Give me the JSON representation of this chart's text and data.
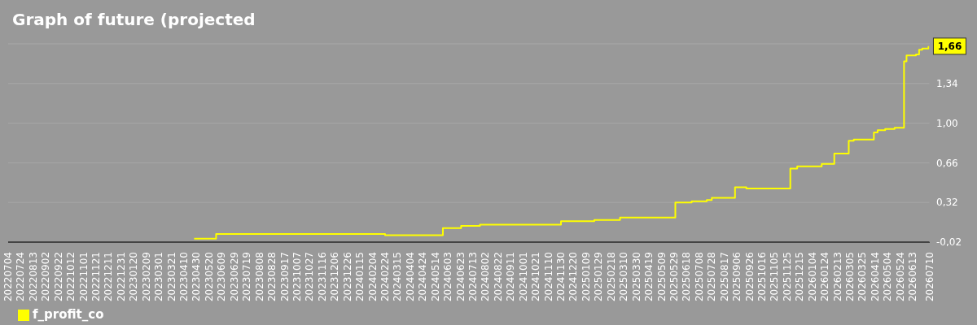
{
  "chart_data": {
    "type": "step",
    "title": "Graph of future (projected",
    "x": [
      "2023-04-26",
      "2023-05-31",
      "2024-02-24",
      "2024-05-26",
      "2024-06-24",
      "2024-07-24",
      "2024-11-30",
      "2025-01-22",
      "2025-03-04",
      "2025-05-31",
      "2025-06-26",
      "2025-07-20",
      "2025-07-28",
      "2025-09-03",
      "2025-09-21",
      "2025-11-30",
      "2025-12-11",
      "2026-01-19",
      "2026-02-08",
      "2026-03-03",
      "2026-03-11",
      "2026-04-12",
      "2026-04-18",
      "2026-04-30",
      "2026-05-15",
      "2026-05-30",
      "2026-06-03",
      "2026-06-18",
      "2026-06-23",
      "2026-06-28",
      "2026-07-08"
    ],
    "series": [
      {
        "name": "f_profit_co",
        "color": "#ffff00",
        "values": [
          0.01,
          0.05,
          0.04,
          0.1,
          0.12,
          0.13,
          0.16,
          0.17,
          0.19,
          0.32,
          0.33,
          0.34,
          0.36,
          0.45,
          0.44,
          0.61,
          0.63,
          0.65,
          0.74,
          0.85,
          0.86,
          0.92,
          0.94,
          0.95,
          0.96,
          1.53,
          1.58,
          1.59,
          1.63,
          1.64,
          1.66
        ],
        "value_labels": [
          null,
          null,
          null,
          null,
          null,
          null,
          null,
          null,
          null,
          null,
          null,
          null,
          null,
          null,
          null,
          null,
          null,
          null,
          null,
          null,
          null,
          null,
          null,
          null,
          null,
          null,
          null,
          null,
          null,
          null,
          "1,66"
        ]
      }
    ],
    "xlim": [
      "2022-07-04",
      "2026-07-10"
    ],
    "xticks": [
      {
        "value": "2022-07-04",
        "label": "20220704"
      },
      {
        "value": "2022-07-24",
        "label": "20220724"
      },
      {
        "value": "2022-08-13",
        "label": "20220813"
      },
      {
        "value": "2022-09-02",
        "label": "20220902"
      },
      {
        "value": "2022-09-22",
        "label": "20220922"
      },
      {
        "value": "2022-10-12",
        "label": "20221012"
      },
      {
        "value": "2022-11-01",
        "label": "20221101"
      },
      {
        "value": "2022-11-21",
        "label": "20221121"
      },
      {
        "value": "2022-12-11",
        "label": "20221211"
      },
      {
        "value": "2022-12-31",
        "label": "20221231"
      },
      {
        "value": "2023-01-20",
        "label": "20230120"
      },
      {
        "value": "2023-02-09",
        "label": "20230209"
      },
      {
        "value": "2023-03-01",
        "label": "20230301"
      },
      {
        "value": "2023-03-21",
        "label": "20230321"
      },
      {
        "value": "2023-04-10",
        "label": "20230410"
      },
      {
        "value": "2023-04-30",
        "label": "20230430"
      },
      {
        "value": "2023-05-20",
        "label": "20230520"
      },
      {
        "value": "2023-06-09",
        "label": "20230609"
      },
      {
        "value": "2023-06-29",
        "label": "20230629"
      },
      {
        "value": "2023-07-19",
        "label": "20230719"
      },
      {
        "value": "2023-08-08",
        "label": "20230808"
      },
      {
        "value": "2023-08-28",
        "label": "20230828"
      },
      {
        "value": "2023-09-17",
        "label": "20230917"
      },
      {
        "value": "2023-10-07",
        "label": "20231007"
      },
      {
        "value": "2023-10-27",
        "label": "20231027"
      },
      {
        "value": "2023-11-16",
        "label": "20231116"
      },
      {
        "value": "2023-12-06",
        "label": "20231206"
      },
      {
        "value": "2023-12-26",
        "label": "20231226"
      },
      {
        "value": "2024-01-15",
        "label": "20240115"
      },
      {
        "value": "2024-02-04",
        "label": "20240204"
      },
      {
        "value": "2024-02-24",
        "label": "20240224"
      },
      {
        "value": "2024-03-15",
        "label": "20240315"
      },
      {
        "value": "2024-04-04",
        "label": "20240404"
      },
      {
        "value": "2024-04-24",
        "label": "20240424"
      },
      {
        "value": "2024-05-14",
        "label": "20240514"
      },
      {
        "value": "2024-06-03",
        "label": "20240603"
      },
      {
        "value": "2024-06-23",
        "label": "20240623"
      },
      {
        "value": "2024-07-13",
        "label": "20240713"
      },
      {
        "value": "2024-08-02",
        "label": "20240802"
      },
      {
        "value": "2024-08-22",
        "label": "20240822"
      },
      {
        "value": "2024-09-11",
        "label": "20240911"
      },
      {
        "value": "2024-10-01",
        "label": "20241001"
      },
      {
        "value": "2024-10-21",
        "label": "20241021"
      },
      {
        "value": "2024-11-10",
        "label": "20241110"
      },
      {
        "value": "2024-11-30",
        "label": "20241130"
      },
      {
        "value": "2024-12-20",
        "label": "20241220"
      },
      {
        "value": "2025-01-09",
        "label": "20250109"
      },
      {
        "value": "2025-01-29",
        "label": "20250129"
      },
      {
        "value": "2025-02-18",
        "label": "20250218"
      },
      {
        "value": "2025-03-10",
        "label": "20250310"
      },
      {
        "value": "2025-03-30",
        "label": "20250330"
      },
      {
        "value": "2025-04-19",
        "label": "20250419"
      },
      {
        "value": "2025-05-09",
        "label": "20250509"
      },
      {
        "value": "2025-05-29",
        "label": "20250529"
      },
      {
        "value": "2025-06-18",
        "label": "20250618"
      },
      {
        "value": "2025-07-08",
        "label": "20250708"
      },
      {
        "value": "2025-07-28",
        "label": "20250728"
      },
      {
        "value": "2025-08-17",
        "label": "20250817"
      },
      {
        "value": "2025-09-06",
        "label": "20250906"
      },
      {
        "value": "2025-09-26",
        "label": "20250926"
      },
      {
        "value": "2025-10-16",
        "label": "20251016"
      },
      {
        "value": "2025-11-05",
        "label": "20251105"
      },
      {
        "value": "2025-11-25",
        "label": "20251125"
      },
      {
        "value": "2025-12-15",
        "label": "20251215"
      },
      {
        "value": "2026-01-04",
        "label": "20260104"
      },
      {
        "value": "2026-01-24",
        "label": "20260124"
      },
      {
        "value": "2026-02-13",
        "label": "20260213"
      },
      {
        "value": "2026-03-05",
        "label": "20260305"
      },
      {
        "value": "2026-03-25",
        "label": "20260325"
      },
      {
        "value": "2026-04-14",
        "label": "20260414"
      },
      {
        "value": "2026-05-04",
        "label": "20260504"
      },
      {
        "value": "2026-05-24",
        "label": "20260524"
      },
      {
        "value": "2026-06-13",
        "label": "20260613"
      },
      {
        "value": "2026-07-10",
        "label": "20260710"
      }
    ],
    "ylim": [
      -0.02,
      1.68
    ],
    "yticks": [
      {
        "value": -0.02,
        "label": "-0,02"
      },
      {
        "value": 0.32,
        "label": "0,32"
      },
      {
        "value": 0.66,
        "label": "0,66"
      },
      {
        "value": 1.0,
        "label": "1,00"
      },
      {
        "value": 1.34,
        "label": "1,34"
      },
      {
        "value": 1.68,
        "label": null
      }
    ],
    "grid": "y",
    "legend": "bottom left",
    "marker": "none",
    "line_style": "solid"
  }
}
